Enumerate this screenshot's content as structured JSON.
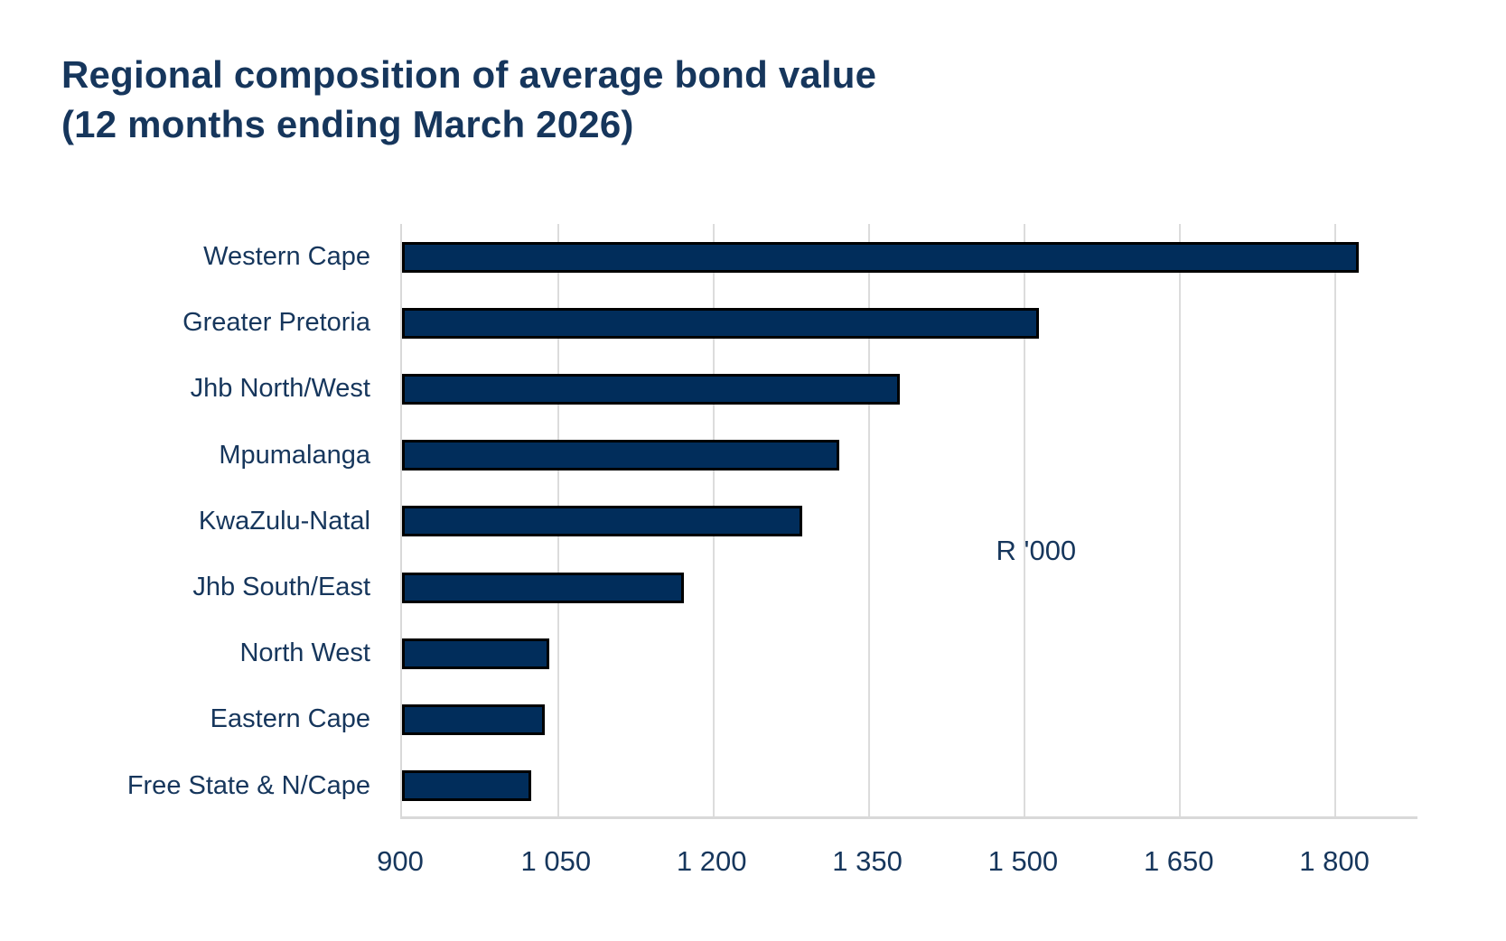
{
  "page": {
    "background": "#ffffff"
  },
  "chart_data": {
    "type": "bar",
    "orientation": "horizontal",
    "title_line1": "Regional composition of average bond value",
    "title_line2": "(12 months ending March 2026)",
    "categories": [
      "Western Cape",
      "Greater Pretoria",
      "Jhb North/West",
      "Mpumalanga",
      "KwaZulu-Natal",
      "Jhb South/East",
      "North West",
      "Eastern Cape",
      "Free State & N/Cape"
    ],
    "values": [
      1823,
      1515,
      1380,
      1322,
      1286,
      1172,
      1042,
      1038,
      1025
    ],
    "unit_annotation": "R '000",
    "xlabel": "",
    "ylabel": "",
    "xlim": [
      900,
      1880
    ],
    "xticks": [
      900,
      1050,
      1200,
      1350,
      1500,
      1650,
      1800
    ],
    "xtick_labels": [
      "900",
      "1 050",
      "1 200",
      "1 350",
      "1 500",
      "1 650",
      "1 800"
    ],
    "grid": true,
    "legend": false,
    "colors": {
      "bar_fill": "#012d5b",
      "bar_border": "#000000",
      "gridline": "#dcdcdc",
      "axis_line": "#d9d9d9",
      "text": "#16365c",
      "background": "#ffffff"
    }
  }
}
